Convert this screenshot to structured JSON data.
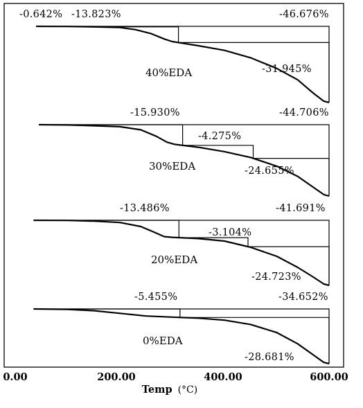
{
  "chart_data": {
    "type": "line",
    "title": "",
    "x_axis": {
      "label": "Temp",
      "unit": "(°C)",
      "range": [
        0,
        600
      ],
      "ticks": [
        "0.00",
        "200.00",
        "400.00",
        "600.00"
      ]
    },
    "grid": false,
    "series": [
      {
        "name": "40%EDA",
        "curve": [
          [
            40,
            100
          ],
          [
            100,
            99.9
          ],
          [
            150,
            99.6
          ],
          [
            200,
            99.1
          ],
          [
            230,
            97.5
          ],
          [
            260,
            94.5
          ],
          [
            285,
            90.5
          ],
          [
            300,
            88.6
          ],
          [
            350,
            85.5
          ],
          [
            400,
            82
          ],
          [
            450,
            76.5
          ],
          [
            500,
            68.5
          ],
          [
            540,
            60
          ],
          [
            570,
            50
          ],
          [
            590,
            44
          ],
          [
            600,
            43
          ]
        ],
        "steps": [
          {
            "value": "-0.642%",
            "text_x": 60,
            "start_x": 40,
            "end_x": 150
          },
          {
            "value": "-13.823%",
            "text_x": 210,
            "start_x": 150,
            "end_x": 312
          },
          {
            "value": "-31.945%",
            "text_x": 535,
            "start_x": 312,
            "end_x": 600
          },
          {
            "value": "-46.676%",
            "text_x": 555,
            "start_x": 40,
            "end_x": 600
          }
        ]
      },
      {
        "name": "30%EDA",
        "curve": [
          [
            45,
            100
          ],
          [
            100,
            99.8
          ],
          [
            150,
            99.3
          ],
          [
            200,
            98.6
          ],
          [
            240,
            96.5
          ],
          [
            270,
            92
          ],
          [
            290,
            88
          ],
          [
            305,
            86.5
          ],
          [
            350,
            84.5
          ],
          [
            400,
            81.5
          ],
          [
            450,
            77.5
          ],
          [
            500,
            71.5
          ],
          [
            540,
            64.5
          ],
          [
            570,
            57
          ],
          [
            590,
            52
          ],
          [
            600,
            51
          ]
        ],
        "steps": [
          {
            "value": "-15.930%",
            "text_x": 245,
            "start_x": 45,
            "end_x": 320
          },
          {
            "value": "-4.275%",
            "text_x": 370,
            "start_x": 320,
            "end_x": 455
          },
          {
            "value": "-24.655%",
            "text_x": 470,
            "start_x": 455,
            "end_x": 600
          },
          {
            "value": "-44.706%",
            "text_x": 560,
            "start_x": 45,
            "end_x": 600
          }
        ]
      },
      {
        "name": "20%EDA",
        "curve": [
          [
            35,
            100
          ],
          [
            100,
            99.9
          ],
          [
            150,
            99.4
          ],
          [
            200,
            98.4
          ],
          [
            240,
            95.5
          ],
          [
            265,
            91.5
          ],
          [
            285,
            88.2
          ],
          [
            300,
            87.7
          ],
          [
            350,
            86.8
          ],
          [
            400,
            85
          ],
          [
            450,
            80.5
          ],
          [
            500,
            74
          ],
          [
            540,
            66
          ],
          [
            570,
            59
          ],
          [
            590,
            54
          ],
          [
            600,
            53
          ]
        ],
        "steps": [
          {
            "value": "-13.486%",
            "text_x": 235,
            "start_x": 35,
            "end_x": 313
          },
          {
            "value": "-3.104%",
            "text_x": 355,
            "start_x": 313,
            "end_x": 445
          },
          {
            "value": "-24.723%",
            "text_x": 475,
            "start_x": 445,
            "end_x": 600
          },
          {
            "value": "-41.691%",
            "text_x": 555,
            "start_x": 35,
            "end_x": 600
          }
        ]
      },
      {
        "name": "0%EDA",
        "curve": [
          [
            35,
            100
          ],
          [
            100,
            99.6
          ],
          [
            150,
            98.6
          ],
          [
            200,
            96.5
          ],
          [
            250,
            94.3
          ],
          [
            300,
            93.4
          ],
          [
            350,
            92.6
          ],
          [
            400,
            91
          ],
          [
            450,
            87.5
          ],
          [
            500,
            81
          ],
          [
            540,
            72
          ],
          [
            570,
            63
          ],
          [
            590,
            57
          ],
          [
            600,
            56
          ]
        ],
        "steps": [
          {
            "value": "-5.455%",
            "text_x": 240,
            "start_x": 35,
            "end_x": 315
          },
          {
            "value": "-28.681%",
            "text_x": 475,
            "start_x": 315,
            "end_x": 600
          },
          {
            "value": "-34.652%",
            "text_x": 560,
            "start_x": 35,
            "end_x": 600
          }
        ]
      }
    ]
  }
}
